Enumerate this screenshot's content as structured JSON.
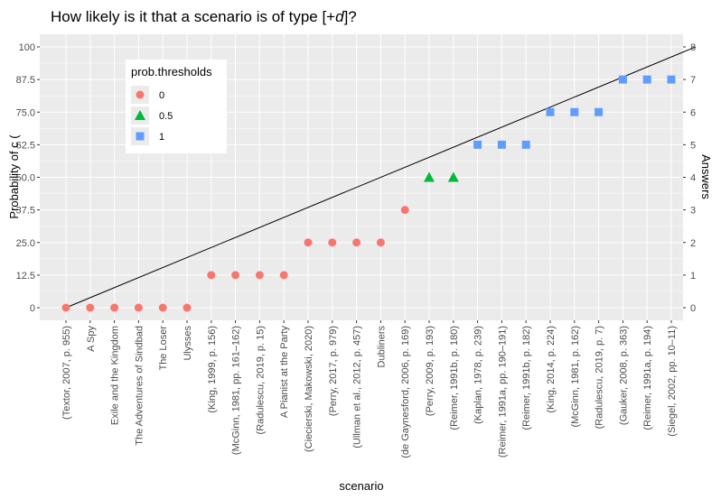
{
  "chart_data": {
    "type": "scatter",
    "title_prefix": "How likely is it that a scenario is of type [+",
    "title_italic": "d",
    "title_suffix": "]?",
    "xlabel": "scenario",
    "ylabel": "Probability of c (",
    "ylabel_right": "Answers",
    "ylim": [
      0,
      100
    ],
    "y_ticks": [
      "0",
      "12.5",
      "25.0",
      "37.5",
      "50.0",
      "62.5",
      "75.0",
      "87.5",
      "100"
    ],
    "y_tick_values": [
      0,
      12.5,
      25,
      37.5,
      50,
      62.5,
      75,
      87.5,
      100
    ],
    "y2lim": [
      0,
      8
    ],
    "y2_ticks": [
      "0",
      "1",
      "2",
      "3",
      "4",
      "5",
      "6",
      "7",
      "8"
    ],
    "categories": [
      "(Textor, 2007, p. 955)",
      "A Spy",
      "Exile and the Kingdom",
      "The Adventures of Sindbad",
      "The Loser",
      "Ulysses",
      "(King, 1999, p. 156)",
      "(McGinn, 1981, pp. 161–162)",
      "(Radulescu, 2019, p. 15)",
      "A Pianist at the Party",
      "(Ciecierski, Makowski, 2020)",
      "(Perry, 2017, p. 979)",
      "(Ullman et al., 2012, p. 457)",
      "Dubliners",
      "(de Gaynesford, 2006, p. 169)",
      "(Perry, 2009, p. 193)",
      "(Reimer, 1991b, p. 180)",
      "(Kaplan, 1978, p. 239)",
      "(Reimer, 1991a, pp. 190–191)",
      "(Reimer, 1991b, p. 182)",
      "(King, 2014, p. 224)",
      "(McGinn, 1981, p. 162)",
      "(Radulescu, 2019, p. 7)",
      "(Gauker, 2008, p. 363)",
      "(Reimer, 1991a, p. 194)",
      "(Siegel, 2002, pp. 10–11)"
    ],
    "values": [
      0,
      0,
      0,
      0,
      0,
      0,
      12.5,
      12.5,
      12.5,
      12.5,
      25,
      25,
      25,
      25,
      37.5,
      50,
      50,
      62.5,
      62.5,
      62.5,
      75,
      75,
      75,
      87.5,
      87.5,
      87.5
    ],
    "groups": [
      "0",
      "0",
      "0",
      "0",
      "0",
      "0",
      "0",
      "0",
      "0",
      "0",
      "0",
      "0",
      "0",
      "0",
      "0",
      "0.5",
      "0.5",
      "1",
      "1",
      "1",
      "1",
      "1",
      "1",
      "1",
      "1",
      "1"
    ],
    "reference_line": {
      "from": [
        0,
        0
      ],
      "to": [
        26,
        100
      ],
      "color": "#000000"
    },
    "legend": {
      "title": "prob.thresholds",
      "placement": "top-left inside",
      "entries": [
        {
          "label": "0",
          "shape": "circle",
          "color": "#F8766D"
        },
        {
          "label": "0.5",
          "shape": "triangle",
          "color": "#00BA38"
        },
        {
          "label": "1",
          "shape": "square",
          "color": "#619CFF"
        }
      ]
    },
    "grid": true,
    "panel_background": "#EBEBEB",
    "grid_color": "#FFFFFF"
  }
}
